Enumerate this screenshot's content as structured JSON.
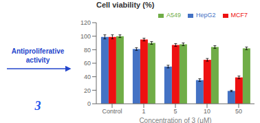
{
  "chart_data": {
    "type": "bar",
    "title": "Cell viability (%)",
    "x_label": "Concentration of 3 (μM)",
    "categories": [
      "Control",
      "1",
      "5",
      "10",
      "50"
    ],
    "series": [
      {
        "name": "HepG2",
        "color": "#4472C4",
        "values": [
          99,
          81,
          55,
          35,
          19
        ],
        "errors": [
          3,
          2,
          2,
          2,
          1
        ]
      },
      {
        "name": "MCF7",
        "color": "#EE1111",
        "values": [
          99,
          95,
          87,
          65,
          39
        ],
        "errors": [
          3,
          2,
          2,
          2,
          2
        ]
      },
      {
        "name": "A549",
        "color": "#70AD47",
        "values": [
          100,
          90,
          88,
          84,
          82
        ],
        "errors": [
          2,
          2,
          2,
          2,
          2
        ]
      }
    ],
    "ylim": [
      0,
      120
    ],
    "yticks": [
      0,
      20,
      40,
      60,
      80,
      100,
      120
    ],
    "grid": false,
    "legend": "upper right",
    "annotations": [
      "3",
      "Antiproliferative",
      "activity"
    ]
  }
}
